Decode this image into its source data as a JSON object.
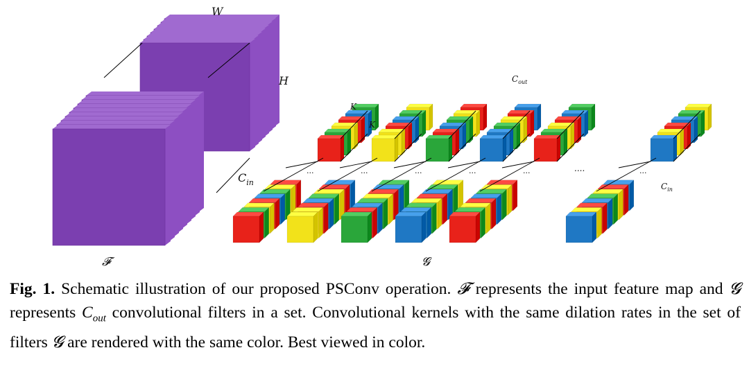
{
  "labels": {
    "W": "W",
    "H": "H",
    "C_in_main": "C",
    "C_in_main_sub": "in",
    "K_top": "K",
    "K_side": "K",
    "C_out": "C",
    "C_out_sub": "out",
    "C_in_right": "C",
    "C_in_right_sub": "in",
    "F": "𝓕",
    "G": "𝓖",
    "ellipsis": "....",
    "dots": "..."
  },
  "colors": {
    "purple_front": "#7b3fb0",
    "purple_side": "#8d4fc2",
    "purple_top": "#a06ad0",
    "red": "#e8221a",
    "yellow": "#f2e21a",
    "green": "#2aa63a",
    "blue": "#1f78c4"
  },
  "filters": {
    "front_colors": [
      "red",
      "yellow",
      "green",
      "blue",
      "red",
      "blue"
    ],
    "back_colors": [
      "red",
      "yellow",
      "green",
      "blue",
      "red",
      "blue"
    ]
  },
  "caption": {
    "fig_label": "Fig. 1.",
    "part1": " Schematic illustration of our proposed PSConv operation. ",
    "F": "𝓕",
    "part2": " represents the input feature map and ",
    "G": "𝓖",
    "part3": " represents ",
    "Cout": "C",
    "Cout_sub": "out",
    "part4": " convolutional filters in a set. Convolutional kernels with the same dilation rates in the set of filters ",
    "G2": "𝓖",
    "part5": " are rendered with the same color. Best viewed in color."
  }
}
